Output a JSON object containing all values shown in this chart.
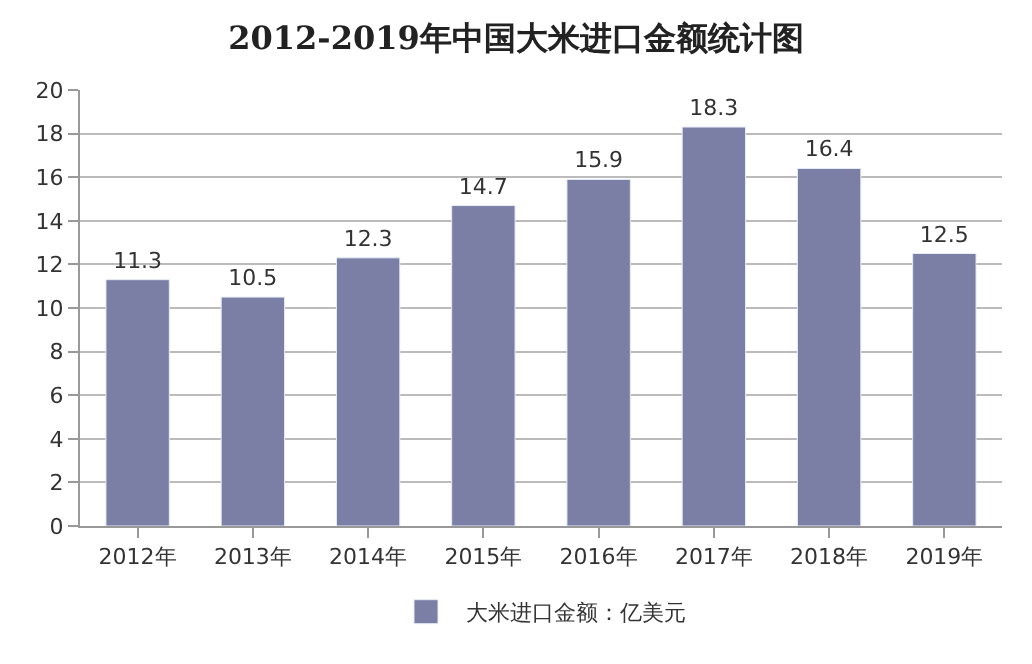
{
  "chart_data": {
    "type": "bar",
    "title": "2012-2019年中国大米进口金额统计图",
    "categories": [
      "2012年",
      "2013年",
      "2014年",
      "2015年",
      "2016年",
      "2017年",
      "2018年",
      "2019年"
    ],
    "series": [
      {
        "name": "大米进口金额：亿美元",
        "color": "#7b7fa6",
        "values": [
          11.3,
          10.5,
          12.3,
          14.7,
          15.9,
          18.3,
          16.4,
          12.5
        ]
      }
    ],
    "ylim": [
      0,
      20
    ],
    "yticks": [
      0,
      2,
      4,
      6,
      8,
      10,
      12,
      14,
      16,
      18,
      20
    ],
    "grid": "y",
    "legend": "bottom",
    "data_labels": true
  }
}
